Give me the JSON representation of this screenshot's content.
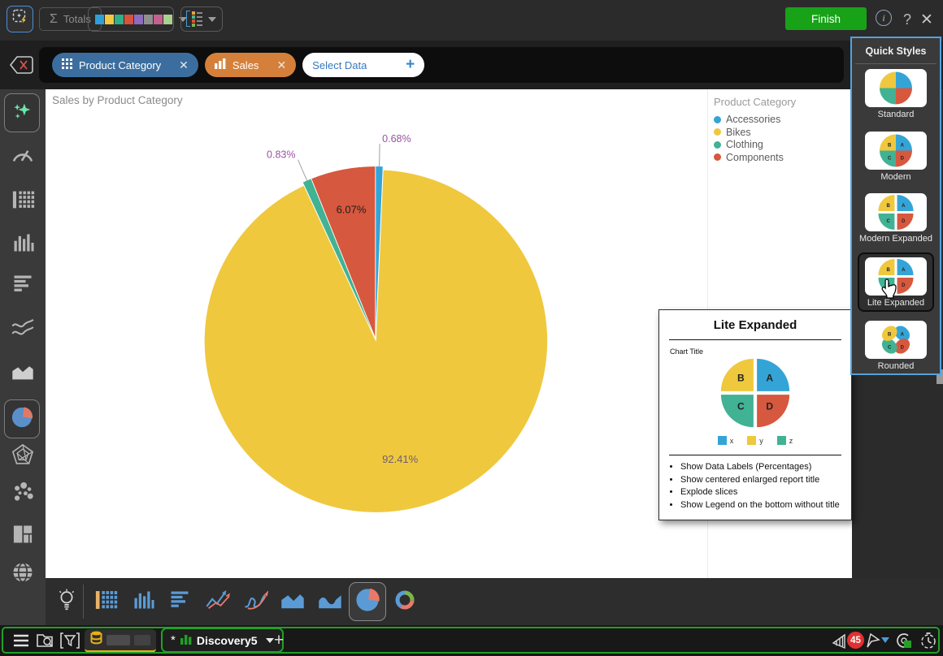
{
  "header": {
    "totals_label": "Totals",
    "finish_label": "Finish",
    "palette_colors": [
      "#2f9fd8",
      "#f2c940",
      "#2eb08a",
      "#d9523e",
      "#8f6bbf",
      "#8f8f8f",
      "#c2618f",
      "#a9d18e"
    ],
    "sort_colors": [
      "#e8a33d",
      "#50b48a",
      "#d9523e",
      "#7ab648"
    ],
    "icons": [
      "magic-wand-icon",
      "info-icon",
      "help-icon",
      "close-icon"
    ]
  },
  "fields_bar": {
    "pills": [
      {
        "label": "Product Category",
        "color": "#3b6e9e",
        "icon": "grid-icon"
      },
      {
        "label": "Sales",
        "color": "#d5803a",
        "icon": "column-bars-icon"
      }
    ],
    "select_data_label": "Select Data"
  },
  "sidebar": {
    "items": [
      {
        "icon": "ai-sparkles",
        "selected": true
      },
      {
        "icon": "gauge",
        "selected": false
      },
      {
        "icon": "data-table",
        "selected": false
      },
      {
        "icon": "column-chart",
        "selected": false
      },
      {
        "icon": "bar-chart",
        "selected": false
      },
      {
        "icon": "line-chart",
        "selected": false
      },
      {
        "icon": "area-chart",
        "selected": false
      },
      {
        "icon": "pie-chart",
        "selected": true
      },
      {
        "icon": "radar-chart",
        "selected": false
      },
      {
        "icon": "scatter-chart",
        "selected": false
      },
      {
        "icon": "treemap-chart",
        "selected": false
      },
      {
        "icon": "map-globe",
        "selected": false
      }
    ]
  },
  "canvas": {
    "title": "Sales by Product Category",
    "legend": {
      "title": "Product Category",
      "items": [
        {
          "label": "Accessories",
          "color": "#34a4d7"
        },
        {
          "label": "Bikes",
          "color": "#efc83e"
        },
        {
          "label": "Clothing",
          "color": "#41b293"
        },
        {
          "label": "Components",
          "color": "#d6583e"
        }
      ]
    }
  },
  "chart_data": {
    "type": "pie",
    "title": "Sales by Product Category",
    "series_name": "Sales",
    "categories": [
      "Accessories",
      "Bikes",
      "Clothing",
      "Components"
    ],
    "values": [
      0.68,
      92.41,
      0.83,
      6.07
    ],
    "labels": [
      "0.68%",
      "92.41%",
      "0.83%",
      "6.07%"
    ],
    "colors": [
      "#34a4d7",
      "#efc83e",
      "#41b293",
      "#d6583e"
    ],
    "unit": "%",
    "legend_position": "top-right",
    "clockwise_from_top": true,
    "label_layout": [
      {
        "placement": "outside",
        "color": "#9b52a1"
      },
      {
        "placement": "inside",
        "color": "#6f5f70",
        "r_frac": 0.735
      },
      {
        "placement": "outside",
        "color": "#9b52a1"
      },
      {
        "placement": "inside",
        "color": "#1e1e1e",
        "r_frac": 0.75
      }
    ]
  },
  "quick_styles": {
    "title": "Quick Styles",
    "items": [
      {
        "label": "Standard",
        "variant": "standard",
        "hovered": false
      },
      {
        "label": "Modern",
        "variant": "modern",
        "hovered": false
      },
      {
        "label": "Modern Expanded",
        "variant": "modern-expanded",
        "hovered": false
      },
      {
        "label": "Lite Expanded",
        "variant": "lite-expanded",
        "hovered": true
      },
      {
        "label": "Rounded",
        "variant": "rounded",
        "hovered": false
      }
    ],
    "thumb_slices": [
      {
        "letter": "A",
        "color": "#34a4d7"
      },
      {
        "letter": "D",
        "color": "#d6583e"
      },
      {
        "letter": "C",
        "color": "#41b293"
      },
      {
        "letter": "B",
        "color": "#efc83e"
      }
    ]
  },
  "style_tooltip": {
    "title": "Lite Expanded",
    "preview_chart_title": "Chart Title",
    "legend": [
      {
        "label": "x",
        "color": "#34a4d7"
      },
      {
        "label": "y",
        "color": "#efc83e"
      },
      {
        "label": "z",
        "color": "#41b293"
      }
    ],
    "bullets": [
      "Show Data Labels (Percentages)",
      "Show centered enlarged report title",
      "Explode slices",
      "Show Legend on the bottom without title"
    ]
  },
  "bottom_toolbar": {
    "items": [
      {
        "icon": "data-grid",
        "selected": false
      },
      {
        "icon": "column-chart",
        "selected": false
      },
      {
        "icon": "bar-chart",
        "selected": false
      },
      {
        "icon": "line-chart",
        "selected": false
      },
      {
        "icon": "spline-chart",
        "selected": false
      },
      {
        "icon": "area-chart",
        "selected": false
      },
      {
        "icon": "spline-area-chart",
        "selected": false
      },
      {
        "icon": "pie-chart",
        "selected": true
      },
      {
        "icon": "donut-chart",
        "selected": false
      }
    ],
    "insights_icon": "lightbulb-icon"
  },
  "status_bar": {
    "active_tab_prefix": "*",
    "active_tab_label": "Discovery5",
    "notification_count": "45",
    "icons": [
      "menu-icon",
      "folder-search-icon",
      "filter-icon",
      "database-icon",
      "plus-icon",
      "signal-icon",
      "flag-icon",
      "dropdown-caret-icon",
      "record-status-icon",
      "timer-icon"
    ]
  }
}
